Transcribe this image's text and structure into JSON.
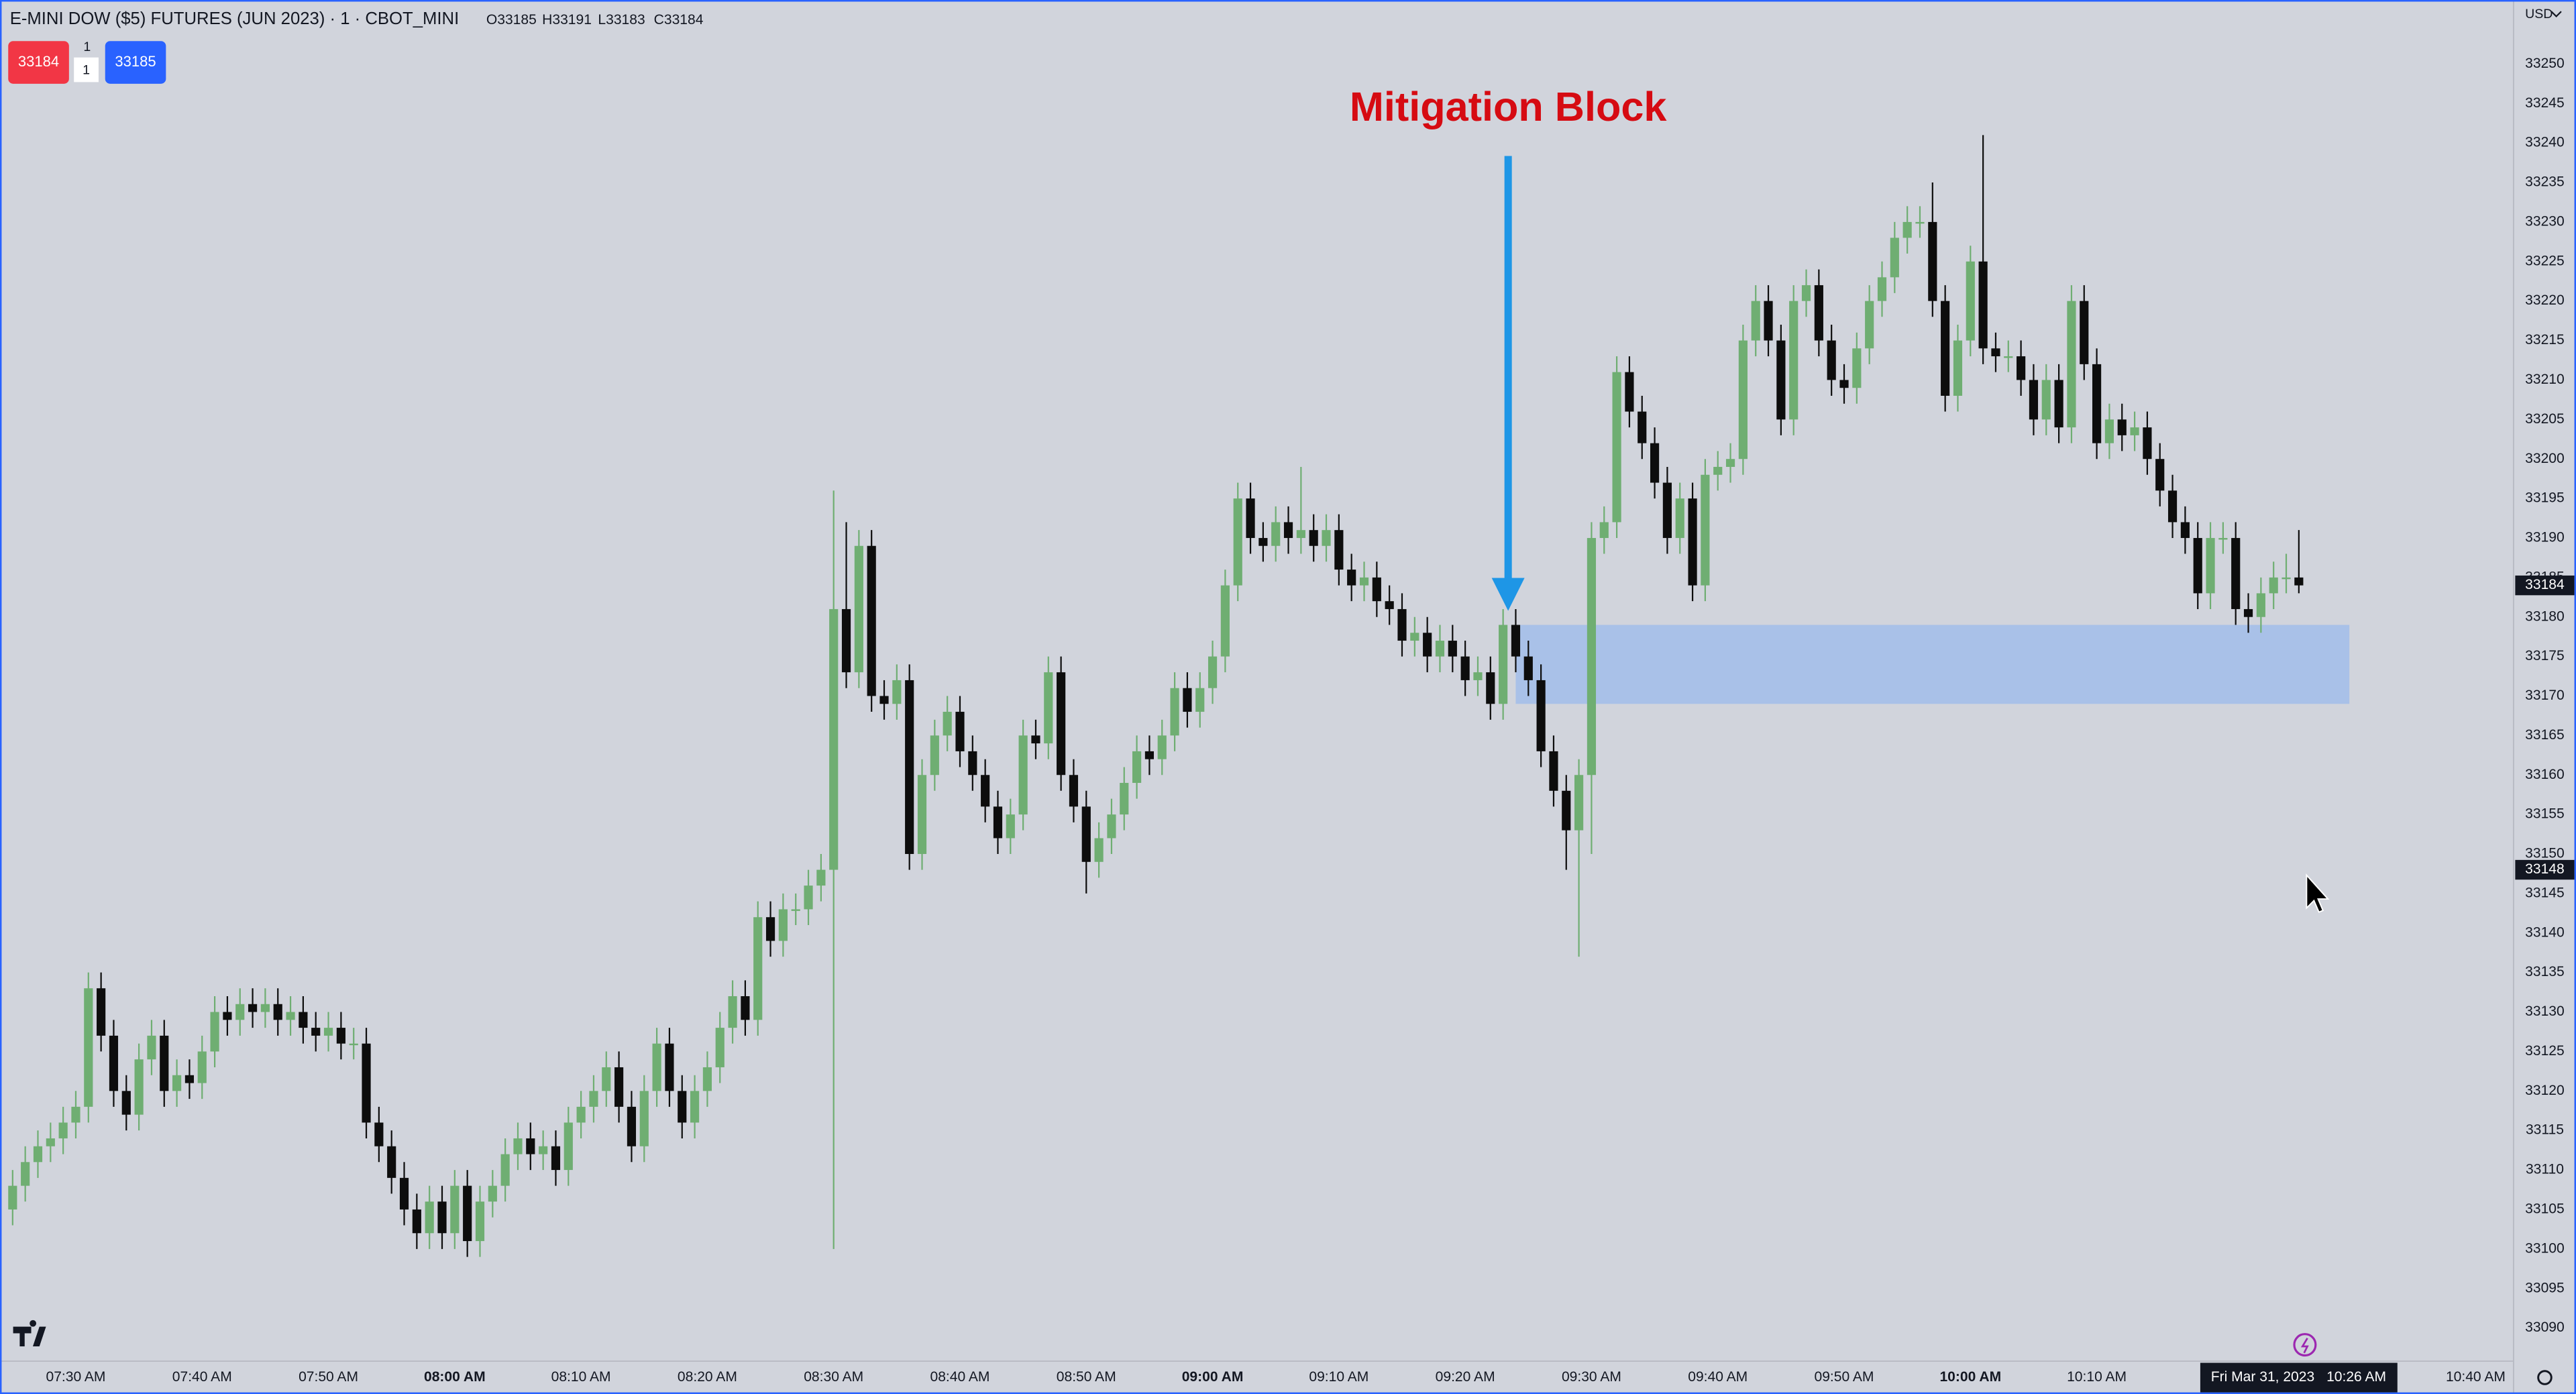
{
  "header": {
    "title": "E-MINI DOW ($5) FUTURES (JUN 2023) · 1 · CBOT_MINI",
    "ohlc": [
      "O33185",
      "H33191",
      "L33183",
      "C33184"
    ],
    "sell": "33184",
    "qty": [
      "1",
      "1"
    ],
    "buy": "33185",
    "currency": "USD"
  },
  "chart_data": {
    "type": "candlestick",
    "up_color": "#6fae72",
    "down_color": "#0d0d0d",
    "x": [
      445,
      446,
      447,
      448,
      449,
      450,
      451,
      452,
      453,
      454,
      455,
      456,
      457,
      458,
      459,
      460,
      461,
      462,
      463,
      464,
      465,
      466,
      467,
      468,
      469,
      470,
      471,
      472,
      473,
      474,
      475,
      476,
      477,
      478,
      479,
      480,
      481,
      482,
      483,
      484,
      485,
      486,
      487,
      488,
      489,
      490,
      491,
      492,
      493,
      494,
      495,
      496,
      497,
      498,
      499,
      500,
      501,
      502,
      503,
      504,
      505,
      506,
      507,
      508,
      509,
      510,
      511,
      512,
      513,
      514,
      515,
      516,
      517,
      518,
      519,
      520,
      521,
      522,
      523,
      524,
      525,
      526,
      527,
      528,
      529,
      530,
      531,
      532,
      533,
      534,
      535,
      536,
      537,
      538,
      539,
      540,
      541,
      542,
      543,
      544,
      545,
      546,
      547,
      548,
      549,
      550,
      551,
      552,
      553,
      554,
      555,
      556,
      557,
      558,
      559,
      560,
      561,
      562,
      563,
      564,
      565,
      566,
      567,
      568,
      569,
      570,
      571,
      572,
      573,
      574,
      575,
      576,
      577,
      578,
      579,
      580,
      581,
      582,
      583,
      584,
      585,
      586,
      587,
      588,
      589,
      590,
      591,
      592,
      593,
      594,
      595,
      596,
      597,
      598,
      599,
      600,
      601,
      602,
      603,
      604,
      605,
      606,
      607,
      608,
      609,
      610,
      611,
      612,
      613,
      614,
      615,
      616,
      617,
      618,
      619,
      620,
      621,
      622,
      623,
      624,
      625,
      626
    ],
    "open": [
      33105,
      33108,
      33111,
      33113,
      33114,
      33116,
      33118,
      33133,
      33127,
      33120,
      33117,
      33124,
      33127,
      33120,
      33122,
      33121,
      33125,
      33130,
      33129,
      33131,
      33130,
      33131,
      33129,
      33130,
      33128,
      33127,
      33128,
      33126,
      33126,
      33116,
      33113,
      33109,
      33105,
      33102,
      33106,
      33102,
      33108,
      33101,
      33106,
      33108,
      33112,
      33114,
      33112,
      33113,
      33110,
      33116,
      33118,
      33120,
      33123,
      33118,
      33113,
      33120,
      33126,
      33120,
      33116,
      33120,
      33123,
      33128,
      33132,
      33129,
      33142,
      33139,
      33143,
      33143,
      33146,
      33148,
      33181,
      33173,
      33189,
      33170,
      33169,
      33172,
      33150,
      33160,
      33165,
      33168,
      33163,
      33160,
      33156,
      33152,
      33155,
      33165,
      33164,
      33173,
      33160,
      33156,
      33149,
      33152,
      33155,
      33159,
      33163,
      33162,
      33165,
      33171,
      33168,
      33171,
      33175,
      33184,
      33195,
      33190,
      33189,
      33192,
      33190,
      33191,
      33189,
      33191,
      33186,
      33184,
      33185,
      33182,
      33181,
      33177,
      33178,
      33175,
      33177,
      33175,
      33172,
      33173,
      33169,
      33179,
      33175,
      33172,
      33163,
      33158,
      33153,
      33160,
      33190,
      33192,
      33211,
      33206,
      33202,
      33197,
      33190,
      33195,
      33184,
      33198,
      33199,
      33200,
      33215,
      33220,
      33215,
      33205,
      33220,
      33222,
      33215,
      33210,
      33209,
      33214,
      33220,
      33223,
      33228,
      33230,
      33230,
      33220,
      33208,
      33215,
      33225,
      33214,
      33213,
      33213,
      33210,
      33205,
      33210,
      33204,
      33220,
      33212,
      33202,
      33205,
      33203,
      33204,
      33200,
      33196,
      33192,
      33190,
      33183,
      33190,
      33190,
      33181,
      33180,
      33183,
      33185,
      33185
    ],
    "high": [
      33110,
      33113,
      33115,
      33116,
      33118,
      33120,
      33135,
      33135,
      33129,
      33122,
      33126,
      33129,
      33129,
      33124,
      33124,
      33127,
      33132,
      33132,
      33133,
      33133,
      33133,
      33133,
      33132,
      33132,
      33130,
      33130,
      33130,
      33128,
      33128,
      33118,
      33115,
      33111,
      33107,
      33108,
      33108,
      33110,
      33110,
      33108,
      33110,
      33114,
      33116,
      33116,
      33115,
      33115,
      33118,
      33120,
      33122,
      33125,
      33125,
      33120,
      33122,
      33128,
      33128,
      33122,
      33122,
      33125,
      33130,
      33134,
      33134,
      33144,
      33144,
      33145,
      33145,
      33148,
      33150,
      33196,
      33192,
      33191,
      33191,
      33172,
      33174,
      33174,
      33162,
      33167,
      33170,
      33170,
      33165,
      33162,
      33158,
      33157,
      33167,
      33167,
      33175,
      33175,
      33162,
      33158,
      33154,
      33157,
      33161,
      33165,
      33165,
      33167,
      33173,
      33173,
      33173,
      33177,
      33186,
      33197,
      33197,
      33192,
      33194,
      33194,
      33199,
      33193,
      33193,
      33193,
      33188,
      33187,
      33187,
      33184,
      33183,
      33180,
      33180,
      33179,
      33179,
      33177,
      33175,
      33175,
      33181,
      33181,
      33177,
      33174,
      33165,
      33160,
      33162,
      33192,
      33194,
      33213,
      33213,
      33208,
      33204,
      33199,
      33197,
      33197,
      33200,
      33201,
      33202,
      33217,
      33222,
      33222,
      33217,
      33222,
      33224,
      33224,
      33217,
      33212,
      33216,
      33222,
      33225,
      33230,
      33232,
      33232,
      33235,
      33222,
      33217,
      33227,
      33241,
      33216,
      33215,
      33215,
      33212,
      33212,
      33212,
      33222,
      33222,
      33214,
      33207,
      33207,
      33206,
      33206,
      33202,
      33198,
      33194,
      33192,
      33192,
      33192,
      33192,
      33183,
      33185,
      33187,
      33188,
      33191
    ],
    "low": [
      33103,
      33106,
      33109,
      33111,
      33112,
      33114,
      33116,
      33125,
      33118,
      33115,
      33115,
      33122,
      33118,
      33118,
      33119,
      33119,
      33123,
      33127,
      33127,
      33128,
      33128,
      33127,
      33127,
      33126,
      33125,
      33125,
      33124,
      33124,
      33114,
      33111,
      33107,
      33103,
      33100,
      33100,
      33100,
      33100,
      33099,
      33099,
      33104,
      33106,
      33110,
      33110,
      33110,
      33108,
      33108,
      33114,
      33116,
      33118,
      33116,
      33111,
      33111,
      33118,
      33118,
      33114,
      33114,
      33118,
      33121,
      33126,
      33127,
      33127,
      33137,
      33137,
      33141,
      33141,
      33144,
      33100,
      33171,
      33171,
      33168,
      33167,
      33167,
      33148,
      33148,
      33158,
      33163,
      33161,
      33158,
      33154,
      33150,
      33150,
      33153,
      33162,
      33162,
      33158,
      33154,
      33145,
      33147,
      33150,
      33153,
      33157,
      33160,
      33160,
      33163,
      33166,
      33166,
      33169,
      33173,
      33182,
      33188,
      33187,
      33187,
      33188,
      33188,
      33187,
      33187,
      33184,
      33182,
      33182,
      33180,
      33179,
      33175,
      33175,
      33173,
      33173,
      33173,
      33170,
      33170,
      33167,
      33167,
      33173,
      33170,
      33161,
      33156,
      33148,
      33137,
      33150,
      33188,
      33190,
      33204,
      33200,
      33195,
      33188,
      33188,
      33182,
      33182,
      33196,
      33197,
      33198,
      33213,
      33213,
      33203,
      33203,
      33218,
      33213,
      33208,
      33207,
      33207,
      33212,
      33218,
      33221,
      33226,
      33228,
      33218,
      33206,
      33206,
      33213,
      33212,
      33211,
      33211,
      33208,
      33203,
      33203,
      33202,
      33202,
      33210,
      33200,
      33200,
      33201,
      33201,
      33198,
      33194,
      33190,
      33188,
      33181,
      33181,
      33188,
      33179,
      33178,
      33178,
      33181,
      33183,
      33183
    ],
    "close": [
      33108,
      33111,
      33113,
      33114,
      33116,
      33118,
      33133,
      33127,
      33120,
      33117,
      33124,
      33127,
      33120,
      33122,
      33121,
      33125,
      33130,
      33129,
      33131,
      33130,
      33131,
      33129,
      33130,
      33128,
      33127,
      33128,
      33126,
      33126,
      33116,
      33113,
      33109,
      33105,
      33102,
      33106,
      33102,
      33108,
      33101,
      33106,
      33108,
      33112,
      33114,
      33112,
      33113,
      33110,
      33116,
      33118,
      33120,
      33123,
      33118,
      33113,
      33120,
      33126,
      33120,
      33116,
      33120,
      33123,
      33128,
      33132,
      33129,
      33142,
      33139,
      33143,
      33143,
      33146,
      33148,
      33181,
      33173,
      33189,
      33170,
      33169,
      33172,
      33150,
      33160,
      33165,
      33168,
      33163,
      33160,
      33156,
      33152,
      33155,
      33165,
      33164,
      33173,
      33160,
      33156,
      33149,
      33152,
      33155,
      33159,
      33163,
      33162,
      33165,
      33171,
      33168,
      33171,
      33175,
      33184,
      33195,
      33190,
      33189,
      33192,
      33190,
      33191,
      33189,
      33191,
      33186,
      33184,
      33185,
      33182,
      33181,
      33177,
      33178,
      33175,
      33177,
      33175,
      33172,
      33173,
      33169,
      33179,
      33175,
      33172,
      33163,
      33158,
      33153,
      33160,
      33190,
      33192,
      33211,
      33206,
      33202,
      33197,
      33190,
      33195,
      33184,
      33198,
      33199,
      33200,
      33215,
      33220,
      33215,
      33205,
      33220,
      33222,
      33215,
      33210,
      33209,
      33214,
      33220,
      33223,
      33228,
      33230,
      33230,
      33220,
      33208,
      33215,
      33225,
      33214,
      33213,
      33213,
      33210,
      33205,
      33210,
      33204,
      33220,
      33212,
      33202,
      33205,
      33203,
      33204,
      33200,
      33196,
      33192,
      33190,
      33183,
      33190,
      33190,
      33181,
      33180,
      33183,
      33185,
      33185,
      33184
    ],
    "xlim": [
      444,
      643
    ],
    "xticks": [
      {
        "value": 450,
        "label": "07:30 AM"
      },
      {
        "value": 460,
        "label": "07:40 AM"
      },
      {
        "value": 470,
        "label": "07:50 AM"
      },
      {
        "value": 480,
        "label": "08:00 AM"
      },
      {
        "value": 490,
        "label": "08:10 AM"
      },
      {
        "value": 500,
        "label": "08:20 AM"
      },
      {
        "value": 510,
        "label": "08:30 AM"
      },
      {
        "value": 520,
        "label": "08:40 AM"
      },
      {
        "value": 530,
        "label": "08:50 AM"
      },
      {
        "value": 540,
        "label": "09:00 AM"
      },
      {
        "value": 550,
        "label": "09:10 AM"
      },
      {
        "value": 560,
        "label": "09:20 AM"
      },
      {
        "value": 570,
        "label": "09:30 AM"
      },
      {
        "value": 580,
        "label": "09:40 AM"
      },
      {
        "value": 590,
        "label": "09:50 AM"
      },
      {
        "value": 600,
        "label": "10:00 AM"
      },
      {
        "value": 610,
        "label": "10:10 AM"
      },
      {
        "value": 640,
        "label": "10:40 AM"
      }
    ],
    "ylim": [
      33085.8,
      33258.1
    ],
    "yticks": [
      33090,
      33095,
      33100,
      33105,
      33110,
      33115,
      33120,
      33125,
      33130,
      33135,
      33140,
      33145,
      33150,
      33155,
      33160,
      33165,
      33170,
      33175,
      33180,
      33185,
      33190,
      33195,
      33200,
      33205,
      33210,
      33215,
      33220,
      33225,
      33230,
      33235,
      33240,
      33245,
      33250
    ],
    "annotation": "Mitigation Block",
    "zone": {
      "x": [
        564,
        630
      ],
      "top": 33179,
      "bottom": 33169,
      "color": "#a9c1e8"
    },
    "crosshair": {
      "price": 33148,
      "date": "Fri Mar 31, 2023",
      "time": "10:26 AM"
    }
  }
}
